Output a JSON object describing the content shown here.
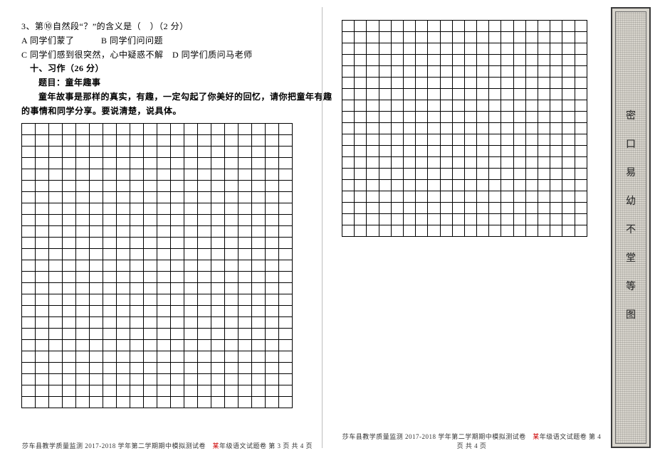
{
  "left": {
    "q3": "3、第⑩自然段“？”的含义是（　）（2 分）",
    "q3a": "A 同学们蒙了　　　B 同学们问问题",
    "q3b": "C 同学们感到很突然，心中疑惑不解　D 同学们质问马老师",
    "section": "十、习作（26 分）",
    "title_line": "题目：童年趣事",
    "prompt1": "童年故事是那样的真实，有趣，一定勾起了你美好的回忆，请你把童年有趣",
    "prompt2": "的事情和同学分享。要说清楚，说具体。",
    "grid": {
      "rows": 25,
      "cols": 20
    }
  },
  "right": {
    "grid": {
      "rows": 19,
      "cols": 20
    }
  },
  "footer": {
    "prefix": "莎车县教学质量监测 2017-2018 学年第二学期期中模拟测试卷　",
    "red": "某",
    "suffix_p3": "年级语文试题卷 第 3 页 共 4 页",
    "suffix_p4": "年级语文试题卷 第 4 页 共 4 页"
  },
  "binding": {
    "chars": [
      "密",
      "口",
      "易",
      "幼",
      "不",
      "堂",
      "等",
      "图"
    ]
  },
  "colors": {
    "text": "#000000",
    "red": "#cc0000",
    "binding_bg": "#d8d5cd",
    "binding_border": "#3a3a3a"
  }
}
